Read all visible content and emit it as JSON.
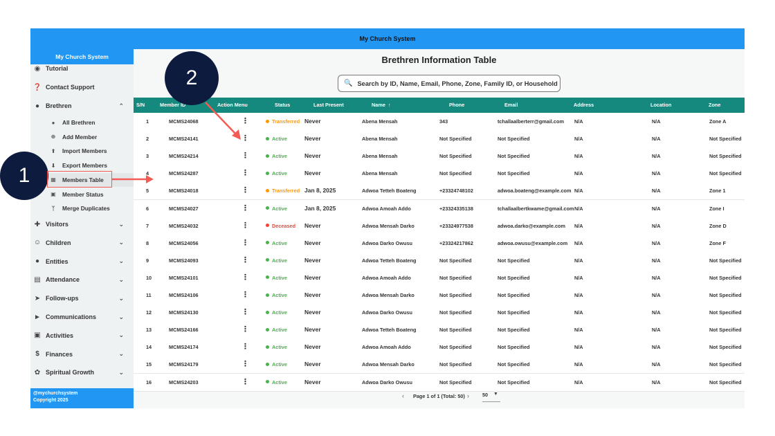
{
  "app_title": "My Church System",
  "sidebar": {
    "title": "My Church System",
    "items_top": [
      {
        "label": "Tutorial",
        "icon": "tutorial-icon"
      },
      {
        "label": "Contact Support",
        "icon": "help-icon"
      }
    ],
    "brethren": {
      "label": "Brethren",
      "icon": "people-icon",
      "sub": [
        {
          "label": "All Brethren",
          "icon": "group-icon"
        },
        {
          "label": "Add Member",
          "icon": "add-circle-icon"
        },
        {
          "label": "Import Members",
          "icon": "upload-icon"
        },
        {
          "label": "Export Members",
          "icon": "download-icon"
        },
        {
          "label": "Members Table",
          "icon": "table-icon",
          "active": true
        },
        {
          "label": "Member Status",
          "icon": "status-icon"
        },
        {
          "label": "Merge Duplicates",
          "icon": "merge-icon"
        }
      ]
    },
    "sections": [
      {
        "label": "Visitors",
        "icon": "person-add-icon"
      },
      {
        "label": "Children",
        "icon": "child-icon"
      },
      {
        "label": "Entities",
        "icon": "groups-icon"
      },
      {
        "label": "Attendance",
        "icon": "calendar-icon"
      },
      {
        "label": "Follow-ups",
        "icon": "follow-up-icon"
      },
      {
        "label": "Communications",
        "icon": "megaphone-icon"
      },
      {
        "label": "Activities",
        "icon": "ticket-icon"
      },
      {
        "label": "Finances",
        "icon": "dollar-icon"
      },
      {
        "label": "Spiritual Growth",
        "icon": "growth-icon"
      }
    ],
    "footer_handle": "@mychurchsystem",
    "footer_copyright": "Copyright 2025"
  },
  "main": {
    "title": "Brethren Information Table",
    "search_placeholder": "Search by ID, Name, Email, Phone, Zone, Family ID, or Household ID"
  },
  "table": {
    "headers": [
      "S/N",
      "Member ID",
      "Action Menu",
      "Status",
      "Last Present",
      "Name",
      "Phone",
      "Email",
      "Address",
      "Location",
      "Zone"
    ],
    "status_colors": {
      "Active": "#4caf50",
      "Transferred": "#ff9800",
      "Deceased": "#f44336"
    },
    "rows": [
      [
        "1",
        "MCMS24068",
        "Transferred",
        "Never",
        "Abena Mensah",
        "343",
        "tchallaalberterr@gmail.com",
        "N/A",
        "N/A",
        "Zone A"
      ],
      [
        "2",
        "MCMS24141",
        "Active",
        "Never",
        "Abena Mensah",
        "Not Specified",
        "Not Specified",
        "N/A",
        "N/A",
        "Not Specified"
      ],
      [
        "3",
        "MCMS24214",
        "Active",
        "Never",
        "Abena Mensah",
        "Not Specified",
        "Not Specified",
        "N/A",
        "N/A",
        "Not Specified"
      ],
      [
        "4",
        "MCMS24287",
        "Active",
        "Never",
        "Abena Mensah",
        "Not Specified",
        "Not Specified",
        "N/A",
        "N/A",
        "Not Specified"
      ],
      [
        "5",
        "MCMS24018",
        "Transferred",
        "Jan 8, 2025",
        "Adwoa Tetteh Boateng",
        "+23324748102",
        "adwoa.boateng@example.com",
        "N/A",
        "N/A",
        "Zone 1"
      ],
      [
        "6",
        "MCMS24027",
        "Active",
        "Jan 8, 2025",
        "Adwoa Amoah Addo",
        "+23324335138",
        "tchallaalbertkwame@gmail.com",
        "N/A",
        "N/A",
        "Zone I"
      ],
      [
        "7",
        "MCMS24032",
        "Deceased",
        "Never",
        "Adwoa Mensah Darko",
        "+23324977538",
        "adwoa.darko@example.com",
        "N/A",
        "N/A",
        "Zone D"
      ],
      [
        "8",
        "MCMS24056",
        "Active",
        "Never",
        "Adwoa Darko Owusu",
        "+23324217862",
        "adwoa.owusu@example.com",
        "N/A",
        "N/A",
        "Zone F"
      ],
      [
        "9",
        "MCMS24093",
        "Active",
        "Never",
        "Adwoa Tetteh Boateng",
        "Not Specified",
        "Not Specified",
        "N/A",
        "N/A",
        "Not Specified"
      ],
      [
        "10",
        "MCMS24101",
        "Active",
        "Never",
        "Adwoa Amoah Addo",
        "Not Specified",
        "Not Specified",
        "N/A",
        "N/A",
        "Not Specified"
      ],
      [
        "11",
        "MCMS24106",
        "Active",
        "Never",
        "Adwoa Mensah Darko",
        "Not Specified",
        "Not Specified",
        "N/A",
        "N/A",
        "Not Specified"
      ],
      [
        "12",
        "MCMS24130",
        "Active",
        "Never",
        "Adwoa Darko Owusu",
        "Not Specified",
        "Not Specified",
        "N/A",
        "N/A",
        "Not Specified"
      ],
      [
        "13",
        "MCMS24166",
        "Active",
        "Never",
        "Adwoa Tetteh Boateng",
        "Not Specified",
        "Not Specified",
        "N/A",
        "N/A",
        "Not Specified"
      ],
      [
        "14",
        "MCMS24174",
        "Active",
        "Never",
        "Adwoa Amoah Addo",
        "Not Specified",
        "Not Specified",
        "N/A",
        "N/A",
        "Not Specified"
      ],
      [
        "15",
        "MCMS24179",
        "Active",
        "Never",
        "Adwoa Mensah Darko",
        "Not Specified",
        "Not Specified",
        "N/A",
        "N/A",
        "Not Specified"
      ],
      [
        "16",
        "MCMS24203",
        "Active",
        "Never",
        "Adwoa Darko Owusu",
        "Not Specified",
        "Not Specified",
        "N/A",
        "N/A",
        "Not Specified"
      ]
    ]
  },
  "pagination": {
    "info": "Page 1 of 1 (Total: 50)",
    "page_size": "50"
  },
  "annotations": {
    "label_1": "1",
    "label_2": "2",
    "color": "#f25c54"
  }
}
